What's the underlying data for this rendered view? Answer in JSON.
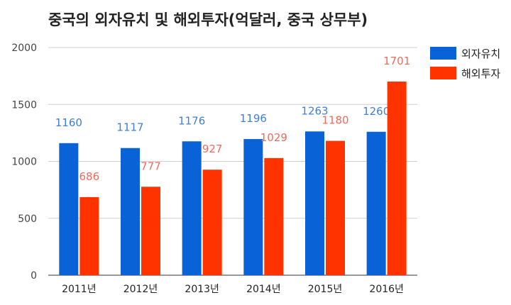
{
  "title": "중국의 외자유치 및 해외투자(억달러, 중국 상무부)",
  "chart_data": {
    "type": "bar",
    "title": "중국의 외자유치 및 해외투자(억달러, 중국 상무부)",
    "xlabel": "",
    "ylabel": "",
    "categories": [
      "2011년",
      "2012년",
      "2013년",
      "2014년",
      "2015년",
      "2016년"
    ],
    "series": [
      {
        "name": "외자유치",
        "values": [
          1160,
          1117,
          1176,
          1196,
          1263,
          1260
        ],
        "color": "#0a63d6",
        "label_color": "#3f7fd6"
      },
      {
        "name": "해외투자",
        "values": [
          686,
          777,
          927,
          1029,
          1180,
          1701
        ],
        "color": "#ff3300",
        "label_color": "#f26a5a"
      }
    ],
    "yticks": [
      0,
      500,
      1000,
      1500,
      2000
    ],
    "ylim": [
      0,
      2000
    ],
    "grid": true,
    "legend_position": "right"
  }
}
